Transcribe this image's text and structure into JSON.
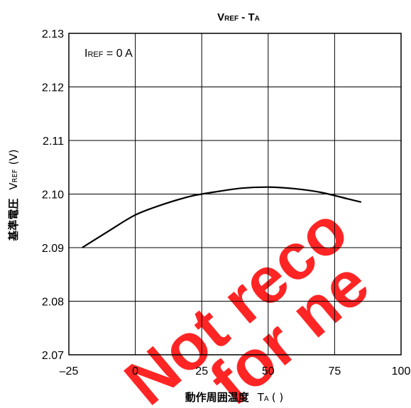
{
  "chart_data": {
    "type": "line",
    "title": {
      "main1": "V",
      "sub1": "REF",
      "dash": " - ",
      "main2": "T",
      "sub2": "A"
    },
    "xlabel": {
      "jp": "動作周囲温度",
      "sym": "T",
      "sub": "A",
      "unit": "(  )"
    },
    "ylabel": {
      "jp": "基準電圧",
      "sym": "V",
      "sub": "REF",
      "unit": "(V)"
    },
    "annotation": {
      "sym": "I",
      "sub": "REF",
      "rest": " = 0 A"
    },
    "x_ticks": [
      "–25",
      "0",
      "25",
      "50",
      "75",
      "100"
    ],
    "y_ticks": [
      "2.13",
      "2.12",
      "2.11",
      "2.10",
      "2.09",
      "2.08",
      "2.07"
    ],
    "xlim": [
      -25,
      100
    ],
    "ylim": [
      2.07,
      2.13
    ],
    "grid": true,
    "series": [
      {
        "x": [
          -20,
          -10,
          0,
          10,
          20,
          25,
          30,
          40,
          50,
          60,
          70,
          80,
          85
        ],
        "y": [
          2.09,
          2.0931,
          2.0961,
          2.098,
          2.0995,
          2.1,
          2.1004,
          2.1011,
          2.1013,
          2.101,
          2.1003,
          2.0991,
          2.0985
        ],
        "color": "#000000"
      }
    ],
    "watermark": {
      "line1": "Not reco",
      "line2": "for ne",
      "color": "#ff1a1a"
    }
  }
}
